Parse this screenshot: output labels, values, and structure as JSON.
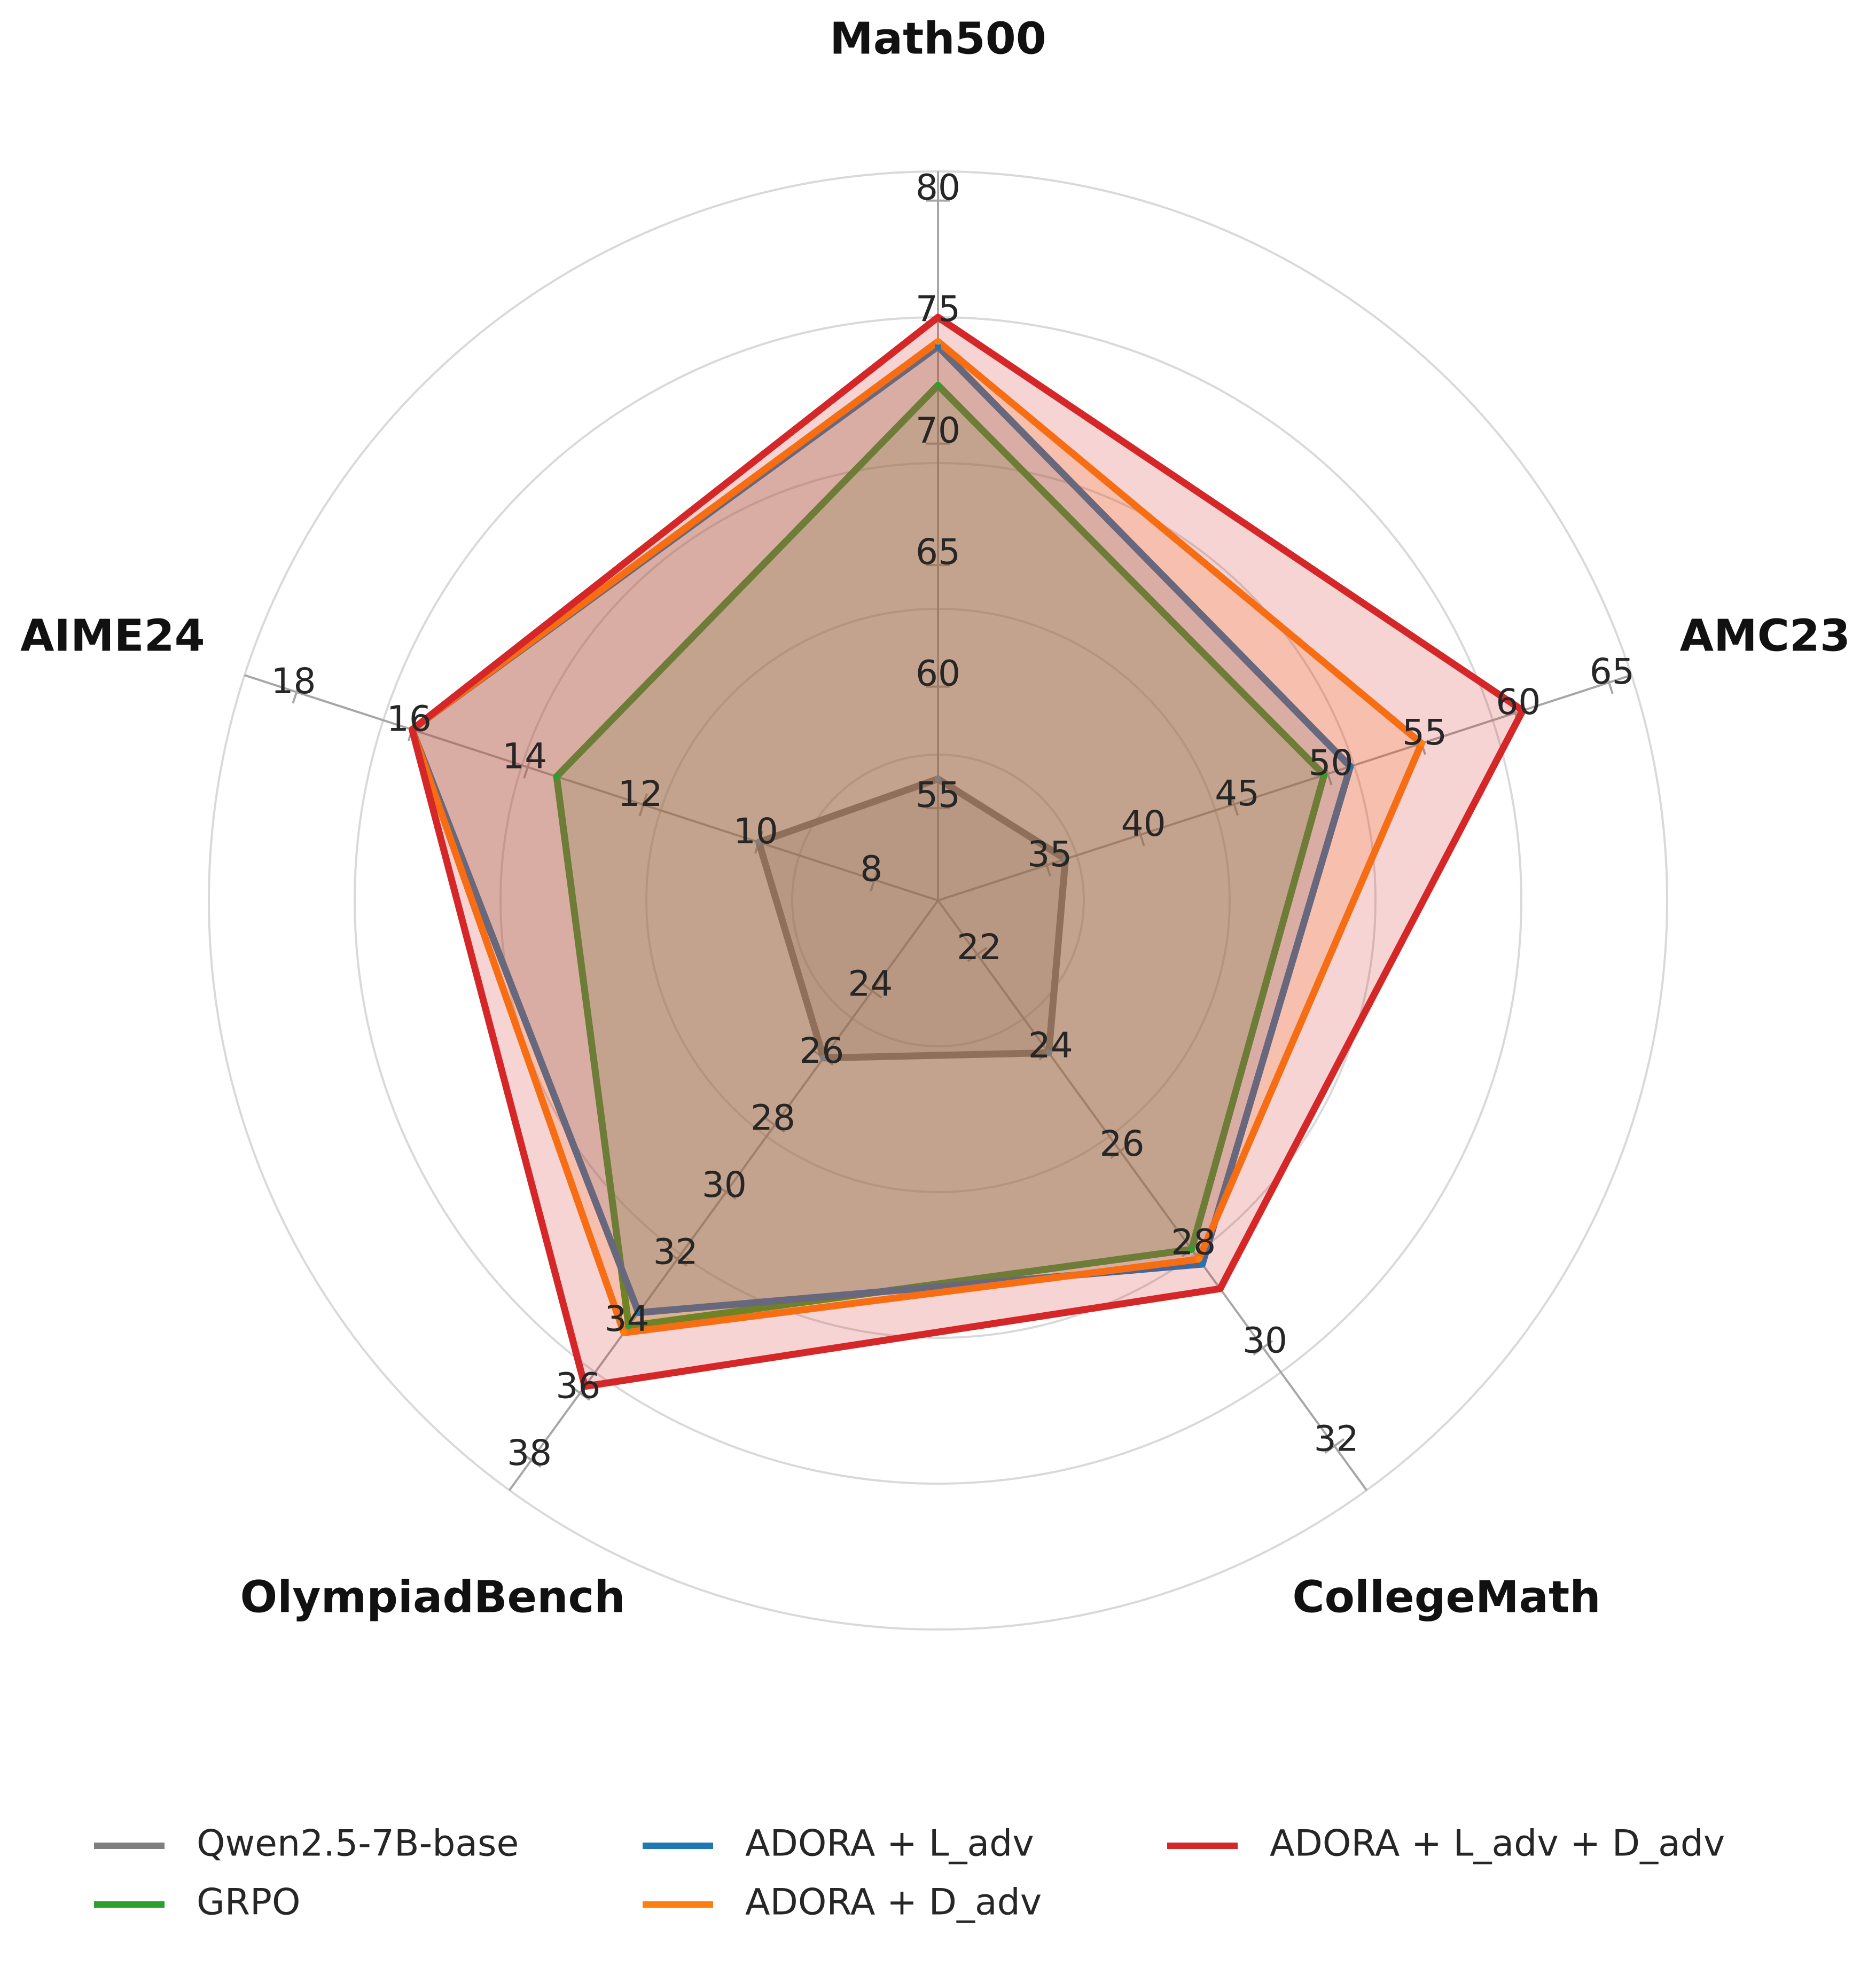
{
  "chart_data": {
    "type": "radar",
    "axes": [
      {
        "label": "Math500",
        "ticks": [
          55,
          60,
          65,
          70,
          75,
          80
        ],
        "min": 51.2,
        "max": 81.2
      },
      {
        "label": "AMC23",
        "ticks": [
          35,
          40,
          45,
          50,
          55,
          60,
          65
        ],
        "min": 29.2,
        "max": 66.2
      },
      {
        "label": "CollegeMath",
        "ticks": [
          22,
          24,
          26,
          28,
          30,
          32
        ],
        "min": 20.9,
        "max": 32.9
      },
      {
        "label": "OlympiadBench",
        "ticks": [
          24,
          26,
          28,
          30,
          32,
          34,
          36,
          38
        ],
        "min": 21.3,
        "max": 38.9
      },
      {
        "label": "AIME24",
        "ticks": [
          8,
          10,
          12,
          14,
          16,
          18
        ],
        "min": 6.9,
        "max": 18.9
      }
    ],
    "series": [
      {
        "name": "Qwen2.5-7B-base",
        "color": "#7f7f7f",
        "values": [
          56.2,
          36.0,
          24.0,
          26.0,
          10.0
        ]
      },
      {
        "name": "GRPO",
        "color": "#2ca02c",
        "values": [
          72.4,
          49.8,
          28.0,
          34.0,
          13.5
        ]
      },
      {
        "name": "ADORA + L_adv",
        "color": "#1f77b4",
        "values": [
          74.0,
          51.2,
          28.3,
          33.6,
          16.0
        ]
      },
      {
        "name": "ADORA + D_adv",
        "color": "#ff7f0e",
        "values": [
          74.2,
          55.0,
          28.2,
          34.2,
          16.0
        ]
      },
      {
        "name": "ADORA + L_adv + D_adv",
        "color": "#d62728",
        "values": [
          75.2,
          60.4,
          28.8,
          35.8,
          16.0
        ]
      }
    ],
    "grid": true,
    "legend_position": "bottom"
  }
}
